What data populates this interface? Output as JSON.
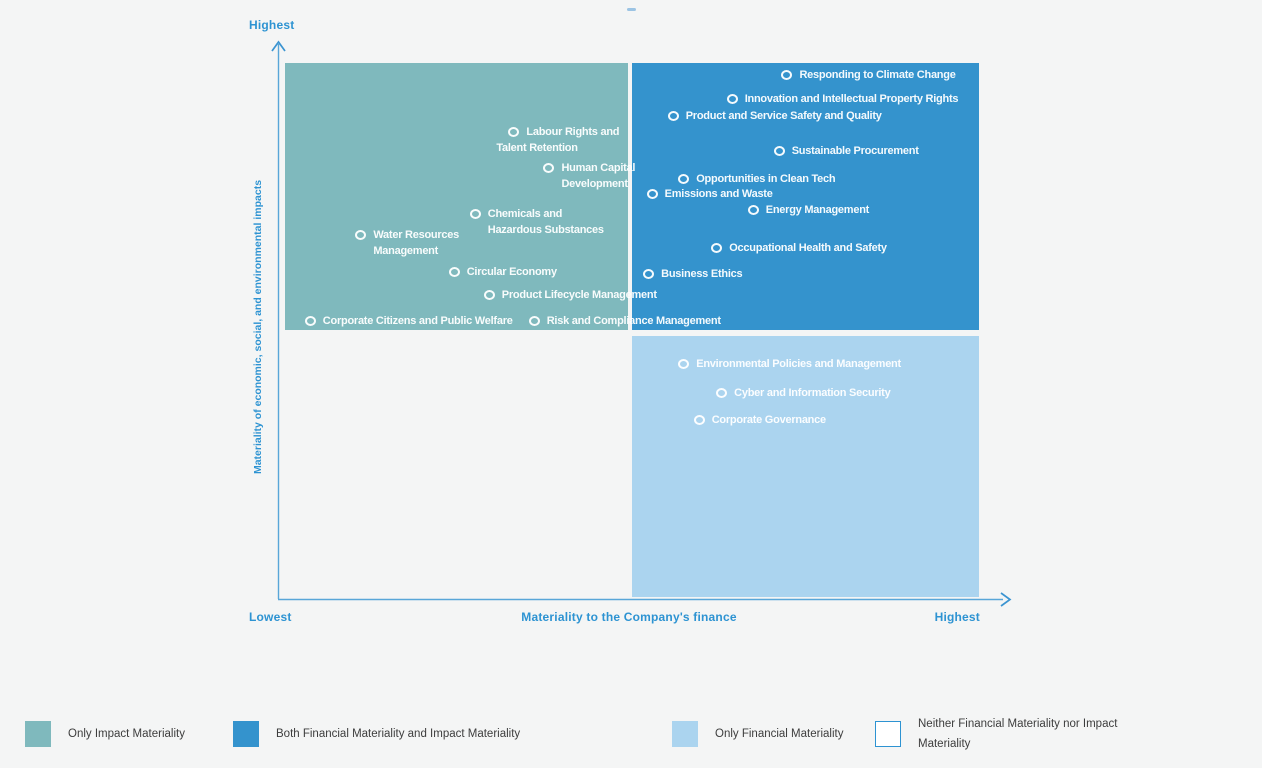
{
  "decorations": {
    "top_dash_color": "#9cc4e4"
  },
  "axes": {
    "y_top_label": "Highest",
    "y_title": "Materiality of economic, social, and environmental impacts",
    "x_left_label": "Lowest",
    "x_title": "Materiality to the Company's finance",
    "x_right_label": "Highest",
    "label_color": "#2d93d2",
    "line_color": "#58a6d8",
    "arrow_color": "#3b94d1"
  },
  "chart_data": {
    "type": "scatter",
    "x_axis": {
      "title": "Materiality to the Company's finance",
      "min_label": "Lowest",
      "max_label": "Highest"
    },
    "y_axis": {
      "title": "Materiality of economic, social, and environmental impacts",
      "max_label": "Highest"
    },
    "grid": false,
    "marker": "white-ring-circle",
    "quadrants": [
      {
        "id": "impact",
        "name": "Only Impact Materiality",
        "position": "top-left",
        "color": "#7fb9bd"
      },
      {
        "id": "both",
        "name": "Both Financial Materiality and Impact Materiality",
        "position": "top-right",
        "color": "#3493cd"
      },
      {
        "id": "financial",
        "name": "Only Financial Materiality",
        "position": "bottom-right",
        "color": "#abd4ef"
      },
      {
        "id": "neither",
        "name": "Neither Financial Materiality nor Impact Materiality",
        "position": "bottom-left",
        "color": "#ffffff"
      }
    ],
    "points": [
      {
        "label": "Labour Rights and Talent Retention",
        "lines": [
          "Labour Rights and",
          "Talent Retention"
        ],
        "line_dx": [
          0,
          -30
        ],
        "x": 0.336,
        "y": 0.871,
        "quadrant": "impact"
      },
      {
        "label": "Human Capital Development",
        "lines": [
          "Human Capital",
          "Development"
        ],
        "x": 0.386,
        "y": 0.804,
        "quadrant": "impact"
      },
      {
        "label": "Chemicals and Hazardous Substances",
        "lines": [
          "Chemicals and",
          "Hazardous Substances"
        ],
        "x": 0.281,
        "y": 0.718,
        "quadrant": "impact"
      },
      {
        "label": "Water Resources Management",
        "lines": [
          "Water Resources",
          "Management"
        ],
        "x": 0.118,
        "y": 0.679,
        "quadrant": "impact"
      },
      {
        "label": "Circular Economy",
        "x": 0.251,
        "y": 0.609,
        "quadrant": "impact"
      },
      {
        "label": "Product Lifecycle Management",
        "x": 0.301,
        "y": 0.566,
        "quadrant": "impact"
      },
      {
        "label": "Corporate Citizens and Public Welfare",
        "x": 0.046,
        "y": 0.518,
        "quadrant": "impact"
      },
      {
        "label": "Risk and Compliance Management",
        "x": 0.365,
        "y": 0.518,
        "quadrant": "impact"
      },
      {
        "label": "Responding to Climate Change",
        "x": 0.725,
        "y": 0.978,
        "quadrant": "both"
      },
      {
        "label": "Innovation and Intellectual Property Rights",
        "x": 0.647,
        "y": 0.933,
        "quadrant": "both"
      },
      {
        "label": "Product and Service Safety and Quality",
        "x": 0.563,
        "y": 0.901,
        "quadrant": "both"
      },
      {
        "label": "Sustainable Procurement",
        "x": 0.714,
        "y": 0.836,
        "quadrant": "both"
      },
      {
        "label": "Opportunities in Clean Tech",
        "x": 0.578,
        "y": 0.783,
        "quadrant": "both"
      },
      {
        "label": "Emissions and Waste",
        "x": 0.533,
        "y": 0.755,
        "quadrant": "both"
      },
      {
        "label": "Energy Management",
        "x": 0.677,
        "y": 0.725,
        "quadrant": "both"
      },
      {
        "label": "Occupational Health and Safety",
        "x": 0.625,
        "y": 0.654,
        "quadrant": "both"
      },
      {
        "label": "Business Ethics",
        "x": 0.528,
        "y": 0.606,
        "quadrant": "both"
      },
      {
        "label": "Environmental Policies and Management",
        "x": 0.578,
        "y": 0.437,
        "quadrant": "financial"
      },
      {
        "label": "Cyber and Information Security",
        "x": 0.632,
        "y": 0.383,
        "quadrant": "financial"
      },
      {
        "label": "Corporate Governance",
        "x": 0.6,
        "y": 0.333,
        "quadrant": "financial"
      }
    ]
  },
  "legend": {
    "items": [
      {
        "swatch_color": "#7fb9bd",
        "label": "Only Impact Materiality"
      },
      {
        "swatch_color": "#3493cd",
        "label": "Both Financial Materiality and Impact Materiality"
      },
      {
        "swatch_color": "#abd4ef",
        "label": "Only Financial Materiality"
      },
      {
        "swatch_color": "#ffffff",
        "swatch_border": "#2d93d2",
        "label": "Neither Financial Materiality nor Impact Materiality"
      }
    ]
  }
}
